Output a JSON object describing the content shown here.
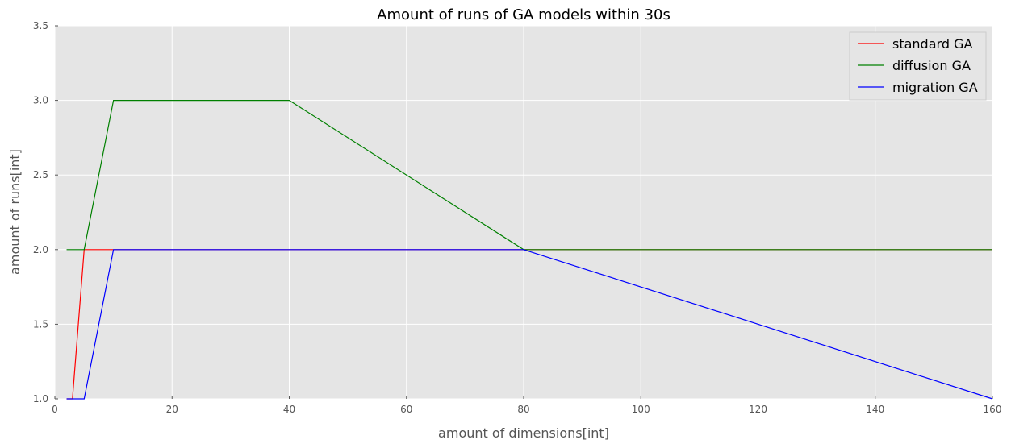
{
  "chart_data": {
    "type": "line",
    "title": "Amount of runs of GA models within 30s",
    "xlabel": "amount of dimensions[int]",
    "ylabel": "amount of runs[int]",
    "xlim": [
      0,
      160
    ],
    "ylim": [
      1.0,
      3.5
    ],
    "xticks": [
      "0",
      "20",
      "40",
      "60",
      "80",
      "100",
      "120",
      "140",
      "160"
    ],
    "yticks": [
      "1.0",
      "1.5",
      "2.0",
      "2.5",
      "3.0",
      "3.5"
    ],
    "grid": true,
    "legend_position": "top-right",
    "series": [
      {
        "name": "standard GA",
        "color": "#ff0000",
        "points": [
          [
            2,
            1.0
          ],
          [
            3,
            1.0
          ],
          [
            5,
            2.0
          ],
          [
            10,
            2.0
          ],
          [
            20,
            2.0
          ],
          [
            40,
            2.0
          ],
          [
            80,
            2.0
          ],
          [
            160,
            2.0
          ]
        ]
      },
      {
        "name": "diffusion GA",
        "color": "#008000",
        "points": [
          [
            2,
            2.0
          ],
          [
            3,
            2.0
          ],
          [
            5,
            2.0
          ],
          [
            10,
            3.0
          ],
          [
            20,
            3.0
          ],
          [
            40,
            3.0
          ],
          [
            80,
            2.0
          ],
          [
            160,
            2.0
          ]
        ]
      },
      {
        "name": "migration GA",
        "color": "#0000ff",
        "points": [
          [
            2,
            1.0
          ],
          [
            3,
            1.0
          ],
          [
            5,
            1.0
          ],
          [
            10,
            2.0
          ],
          [
            20,
            2.0
          ],
          [
            40,
            2.0
          ],
          [
            80,
            2.0
          ],
          [
            160,
            1.0
          ]
        ]
      }
    ]
  }
}
